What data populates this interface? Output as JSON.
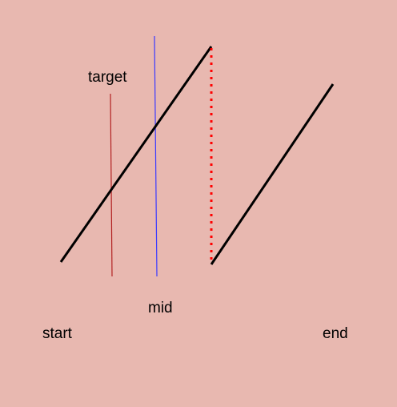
{
  "colors": {
    "background": "#e8b8b0",
    "diagonal_lines": "#000000",
    "target_line": "#b22222",
    "mid_line": "#3a3aff",
    "dotted_connector": "#ff0000"
  },
  "labels": {
    "target": "target",
    "mid": "mid",
    "start": "start",
    "end": "end"
  },
  "elements": {
    "diagonal_line_1": "solid black diagonal",
    "diagonal_line_2": "solid black diagonal",
    "vertical_target": "thin dark red vertical",
    "vertical_mid": "thin blue vertical",
    "connector": "red dotted vertical"
  }
}
